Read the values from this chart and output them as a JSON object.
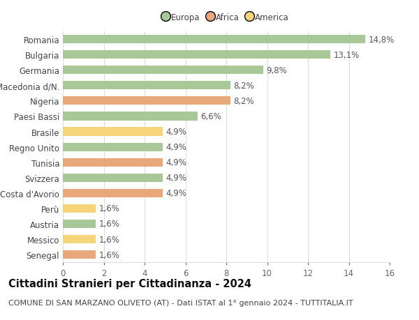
{
  "title": "Cittadini Stranieri per Cittadinanza - 2024",
  "subtitle": "COMUNE DI SAN MARZANO OLIVETO (AT) - Dati ISTAT al 1° gennaio 2024 - TUTTITALIA.IT",
  "categories": [
    "Romania",
    "Bulgaria",
    "Germania",
    "Macedonia d/N.",
    "Nigeria",
    "Paesi Bassi",
    "Brasile",
    "Regno Unito",
    "Tunisia",
    "Svizzera",
    "Costa d'Avorio",
    "Perù",
    "Austria",
    "Messico",
    "Senegal"
  ],
  "values": [
    14.8,
    13.1,
    9.8,
    8.2,
    8.2,
    6.6,
    4.9,
    4.9,
    4.9,
    4.9,
    4.9,
    1.6,
    1.6,
    1.6,
    1.6
  ],
  "continents": [
    "Europa",
    "Europa",
    "Europa",
    "Europa",
    "Africa",
    "Europa",
    "America",
    "Europa",
    "Africa",
    "Europa",
    "Africa",
    "America",
    "Europa",
    "America",
    "Africa"
  ],
  "colors": {
    "Europa": "#a8c897",
    "Africa": "#e8a87c",
    "America": "#f5d47a"
  },
  "legend_colors": {
    "Europa": "#a8c897",
    "Africa": "#e8a87c",
    "America": "#f5d47a"
  },
  "xlim": [
    0,
    16
  ],
  "xticks": [
    0,
    2,
    4,
    6,
    8,
    10,
    12,
    14,
    16
  ],
  "background_color": "#ffffff",
  "grid_color": "#dddddd",
  "bar_height": 0.55,
  "title_fontsize": 10.5,
  "subtitle_fontsize": 8,
  "label_fontsize": 8.5,
  "tick_fontsize": 8.5,
  "value_fontsize": 8.5
}
